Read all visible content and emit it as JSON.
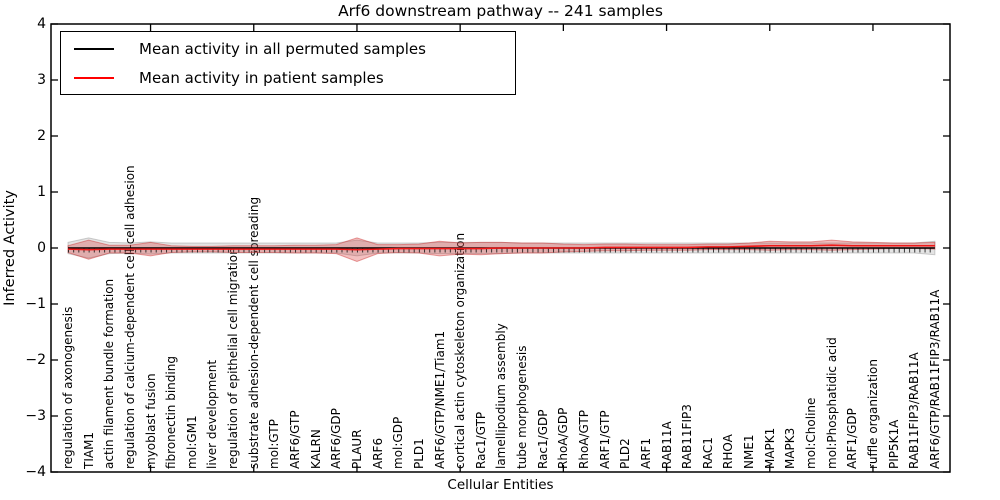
{
  "chart_data": {
    "type": "line",
    "title": "Arf6 downstream pathway -- 241 samples",
    "xlabel": "Cellular Entities",
    "ylabel": "Inferred Activity",
    "ylim": [
      -4,
      4
    ],
    "yticks": [
      4,
      3,
      2,
      1,
      0,
      -1,
      -2,
      -3,
      -4
    ],
    "xtick_positions": [
      5,
      10,
      15,
      20,
      25,
      30,
      35,
      40
    ],
    "grid": false,
    "legend_position": "upper left",
    "categories": [
      "regulation of axonogenesis",
      "TIAM1",
      "actin filament bundle formation",
      "regulation of calcium-dependent cell-cell adhesion",
      "myoblast fusion",
      "fibronectin binding",
      "mol:GM1",
      "liver development",
      "regulation of epithelial cell migration",
      "substrate adhesion-dependent cell spreading",
      "mol:GTP",
      "ARF6/GTP",
      "KALRN",
      "ARF6/GDP",
      "PLAUR",
      "ARF6",
      "mol:GDP",
      "PLD1",
      "ARF6/GTP/NME1/Tiam1",
      "cortical actin cytoskeleton organization",
      "Rac1/GTP",
      "lamellipodium assembly",
      "tube morphogenesis",
      "Rac1/GDP",
      "RhoA/GDP",
      "RhoA/GTP",
      "ARF1/GTP",
      "PLD2",
      "ARF1",
      "RAB11A",
      "RAB11FIP3",
      "RAC1",
      "RHOA",
      "NME1",
      "MAPK1",
      "MAPK3",
      "mol:Choline",
      "mol:Phosphatidic acid",
      "ARF1/GDP",
      "ruffle organization",
      "PIP5K1A",
      "RAB11FIP3/RAB11A",
      "ARF6/GTP/RAB11FIP3/RAB11A"
    ],
    "series": [
      {
        "name": "Mean activity in all permuted samples",
        "color": "#000000",
        "band_color": "rgba(130,130,130,0.22)",
        "band_edge_color": "rgba(120,120,120,0.35)",
        "values": [
          0,
          0,
          0,
          0,
          0,
          0,
          0,
          0,
          0,
          0,
          0,
          0,
          0,
          0,
          0,
          0,
          0,
          0,
          0,
          0,
          0,
          0,
          0,
          0,
          0,
          0,
          0,
          0,
          0,
          0,
          0,
          0,
          0,
          0,
          0,
          0,
          0,
          0,
          0,
          0,
          0,
          0,
          0
        ],
        "band_halfwidth": [
          0.1,
          0.18,
          0.1,
          0.09,
          0.11,
          0.09,
          0.09,
          0.09,
          0.09,
          0.09,
          0.09,
          0.09,
          0.09,
          0.09,
          0.14,
          0.09,
          0.09,
          0.09,
          0.1,
          0.1,
          0.1,
          0.1,
          0.09,
          0.09,
          0.09,
          0.09,
          0.09,
          0.09,
          0.09,
          0.09,
          0.09,
          0.09,
          0.09,
          0.09,
          0.09,
          0.09,
          0.09,
          0.09,
          0.09,
          0.09,
          0.09,
          0.09,
          0.12
        ]
      },
      {
        "name": "Mean activity in patient samples",
        "color": "#ff0000",
        "band_color": "rgba(215,45,45,0.30)",
        "band_edge_color": "rgba(205,45,45,0.45)",
        "values": [
          -0.02,
          -0.03,
          -0.02,
          -0.02,
          -0.02,
          -0.02,
          -0.02,
          -0.02,
          -0.02,
          -0.02,
          -0.02,
          -0.02,
          -0.02,
          -0.02,
          -0.03,
          -0.02,
          -0.01,
          -0.01,
          -0.01,
          -0.01,
          -0.01,
          0.0,
          0.0,
          0.0,
          0.0,
          0.0,
          0.01,
          0.01,
          0.01,
          0.01,
          0.01,
          0.02,
          0.02,
          0.03,
          0.04,
          0.04,
          0.04,
          0.05,
          0.04,
          0.04,
          0.04,
          0.04,
          0.04
        ],
        "band_halfwidth": [
          0.06,
          0.17,
          0.07,
          0.07,
          0.12,
          0.06,
          0.05,
          0.05,
          0.06,
          0.06,
          0.06,
          0.07,
          0.07,
          0.08,
          0.21,
          0.08,
          0.07,
          0.08,
          0.13,
          0.1,
          0.11,
          0.1,
          0.09,
          0.09,
          0.07,
          0.06,
          0.06,
          0.06,
          0.05,
          0.05,
          0.05,
          0.05,
          0.05,
          0.06,
          0.08,
          0.07,
          0.07,
          0.09,
          0.07,
          0.06,
          0.05,
          0.05,
          0.06
        ]
      }
    ]
  }
}
